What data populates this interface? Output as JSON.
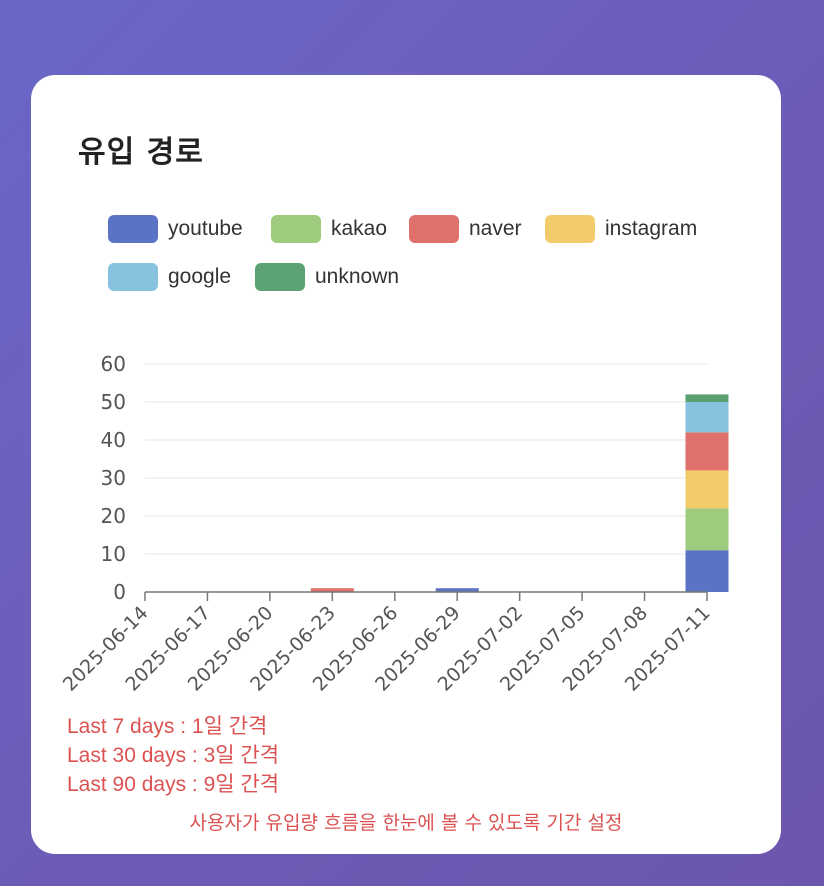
{
  "card": {
    "title": "유입 경로",
    "notes": [
      "Last 7 days : 1일 간격",
      "Last 30 days : 3일 간격",
      "Last 90 days : 9일 간격"
    ],
    "footer_note": "사용자가 유입량 흐름을 한눈에 볼 수 있도록 기간 설정"
  },
  "chart_data": {
    "type": "bar",
    "stacked": true,
    "categories": [
      "2025-06-14",
      "2025-06-17",
      "2025-06-20",
      "2025-06-23",
      "2025-06-26",
      "2025-06-29",
      "2025-07-02",
      "2025-07-05",
      "2025-07-08",
      "2025-07-11"
    ],
    "series": [
      {
        "name": "youtube",
        "color": "#5b73c4",
        "values": [
          0,
          0,
          0,
          0,
          0,
          1,
          0,
          0,
          0,
          11
        ]
      },
      {
        "name": "kakao",
        "color": "#9fcb7f",
        "values": [
          0,
          0,
          0,
          0,
          0,
          0,
          0,
          0,
          0,
          11
        ]
      },
      {
        "name": "instagram",
        "color": "#f2cb6b",
        "values": [
          0,
          0,
          0,
          0,
          0,
          0,
          0,
          0,
          0,
          10
        ]
      },
      {
        "name": "naver",
        "color": "#e0706b",
        "values": [
          0,
          0,
          0,
          1,
          0,
          0,
          0,
          0,
          0,
          10
        ]
      },
      {
        "name": "google",
        "color": "#87c2de",
        "values": [
          0,
          0,
          0,
          0,
          0,
          0,
          0,
          0,
          0,
          8
        ]
      },
      {
        "name": "unknown",
        "color": "#5ba173",
        "values": [
          0,
          0,
          0,
          0,
          0,
          0,
          0,
          0,
          0,
          2
        ]
      }
    ],
    "legend_order": [
      "youtube",
      "kakao",
      "naver",
      "instagram",
      "google",
      "unknown"
    ],
    "yticks": [
      0,
      10,
      20,
      30,
      40,
      50,
      60
    ],
    "ylim": [
      0,
      60
    ],
    "grid": true,
    "legend_position": "top"
  }
}
